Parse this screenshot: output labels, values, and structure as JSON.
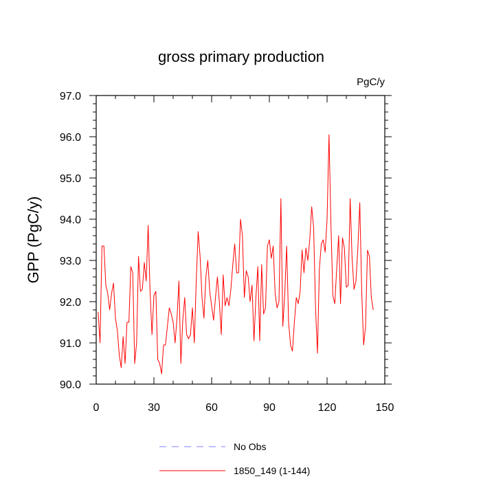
{
  "chart_data": {
    "type": "line",
    "title": "gross primary production",
    "units_label": "PgC/y",
    "ylabel": "GPP  (PgC/y)",
    "xlabel": "",
    "xlim": [
      0,
      150
    ],
    "ylim": [
      90.0,
      97.0
    ],
    "x_ticks": [
      0,
      30,
      60,
      90,
      120,
      150
    ],
    "x_tick_labels": [
      "0",
      "30",
      "60",
      "90",
      "120",
      "150"
    ],
    "y_ticks": [
      90.0,
      91.0,
      92.0,
      93.0,
      94.0,
      95.0,
      96.0,
      97.0
    ],
    "y_tick_labels": [
      "90.0",
      "91.0",
      "92.0",
      "93.0",
      "94.0",
      "95.0",
      "96.0",
      "97.0"
    ],
    "legend": [
      {
        "label": "No Obs",
        "color": "#8080ff",
        "dash": "dashed"
      },
      {
        "label": "1850_149 (1-144)",
        "color": "#ff0000",
        "dash": "solid"
      }
    ],
    "series": [
      {
        "name": "1850_149 (1-144)",
        "color": "#ff0000",
        "x_start": 1,
        "values": [
          91.75,
          91.0,
          93.35,
          93.35,
          92.4,
          92.2,
          91.8,
          92.2,
          92.45,
          91.6,
          91.3,
          90.7,
          90.4,
          91.15,
          90.5,
          91.5,
          91.5,
          92.85,
          92.7,
          90.5,
          91.0,
          93.1,
          92.25,
          92.3,
          92.95,
          92.5,
          93.85,
          92.25,
          91.2,
          92.15,
          92.25,
          90.6,
          90.5,
          90.25,
          90.95,
          90.95,
          91.4,
          91.85,
          91.7,
          91.5,
          91.0,
          91.6,
          92.5,
          90.5,
          91.55,
          92.1,
          91.2,
          91.1,
          91.2,
          91.85,
          91.0,
          92.5,
          93.7,
          93.1,
          92.1,
          91.6,
          92.6,
          93.0,
          92.25,
          91.9,
          91.55,
          92.1,
          92.6,
          92.0,
          91.2,
          92.65,
          91.9,
          92.1,
          91.9,
          92.3,
          92.9,
          93.4,
          92.7,
          92.7,
          94.0,
          93.6,
          92.1,
          92.75,
          92.6,
          92.0,
          92.4,
          91.05,
          92.1,
          92.85,
          91.05,
          92.9,
          91.7,
          91.85,
          93.35,
          93.5,
          93.05,
          93.35,
          92.2,
          91.85,
          92.0,
          94.5,
          91.4,
          92.2,
          93.35,
          91.5,
          90.95,
          90.8,
          91.5,
          92.1,
          91.95,
          92.25,
          93.25,
          92.7,
          93.3,
          93.0,
          93.5,
          94.3,
          93.8,
          91.85,
          90.75,
          92.8,
          93.4,
          93.5,
          93.2,
          94.0,
          96.05,
          93.9,
          92.15,
          91.95,
          92.8,
          93.6,
          91.95,
          93.55,
          93.3,
          92.35,
          92.4,
          94.5,
          93.05,
          92.3,
          92.5,
          93.3,
          94.4,
          92.25,
          90.95,
          91.4,
          93.25,
          93.1,
          92.1,
          91.8
        ]
      }
    ]
  }
}
